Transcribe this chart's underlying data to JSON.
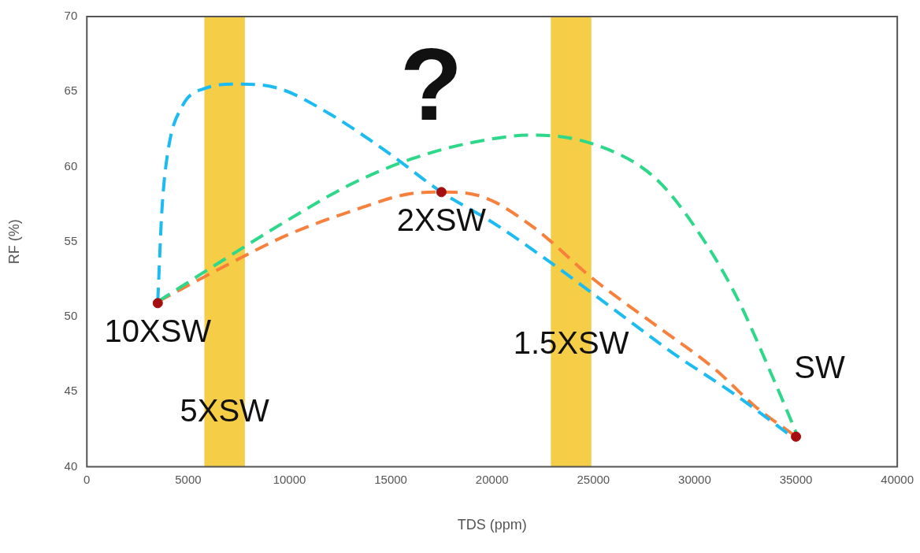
{
  "chart_data": {
    "type": "line",
    "xlabel": "TDS (ppm)",
    "ylabel": "RF (%)",
    "xlim": [
      0,
      40000
    ],
    "xticks": [
      0,
      5000,
      10000,
      15000,
      20000,
      25000,
      30000,
      35000,
      40000
    ],
    "ylim": [
      40,
      70
    ],
    "yticks": [
      40,
      45,
      50,
      55,
      60,
      65,
      70
    ],
    "grid": false,
    "legend": false,
    "line_style": "dashed",
    "marker": "none",
    "bands": [
      {
        "axis": "x",
        "from": 5800,
        "to": 7800,
        "color": "#f5cd47",
        "label": "5XSW"
      },
      {
        "axis": "x",
        "from": 22900,
        "to": 24900,
        "color": "#f5cd47",
        "label": "1.5XSW"
      }
    ],
    "series": [
      {
        "color": "#1cbcf2",
        "x": [
          3500,
          3700,
          4000,
          4700,
          5800,
          7500,
          9500,
          12000,
          15000,
          17500,
          20000,
          23000,
          26000,
          29000,
          32000,
          35000
        ],
        "values": [
          51,
          57,
          61,
          64,
          65.2,
          65.5,
          65.2,
          63.5,
          60.8,
          58.3,
          56.3,
          53.5,
          50.5,
          47.5,
          44.8,
          41.8
        ]
      },
      {
        "color": "#2ed88a",
        "x": [
          3500,
          7000,
          10000,
          13000,
          16000,
          19000,
          22000,
          25000,
          28000,
          30000,
          32000,
          34000,
          35000
        ],
        "values": [
          51,
          54,
          56.5,
          58.8,
          60.5,
          61.6,
          62.1,
          61.5,
          59.3,
          56,
          51.5,
          45.5,
          42.3
        ]
      },
      {
        "color": "#f7803c",
        "x": [
          3500,
          7000,
          10000,
          13000,
          16000,
          17500,
          19500,
          22000,
          25000,
          28000,
          31000,
          33000,
          35000
        ],
        "values": [
          51,
          53.5,
          55.5,
          57,
          58.2,
          58.3,
          58,
          56,
          52.5,
          49.5,
          46.5,
          44,
          42
        ]
      },
      {
        "type": "scatter",
        "marker": "circle",
        "color": "#a50e0e",
        "x": [
          3500,
          17500,
          35000
        ],
        "values": [
          50.9,
          58.3,
          42
        ]
      }
    ],
    "annotations": [
      {
        "text": "10XSW",
        "x": 3500,
        "y": 50.9
      },
      {
        "text": "2XSW",
        "x": 17500,
        "y": 58.3
      },
      {
        "text": "SW",
        "x": 35000,
        "y": 42
      },
      "?"
    ]
  }
}
